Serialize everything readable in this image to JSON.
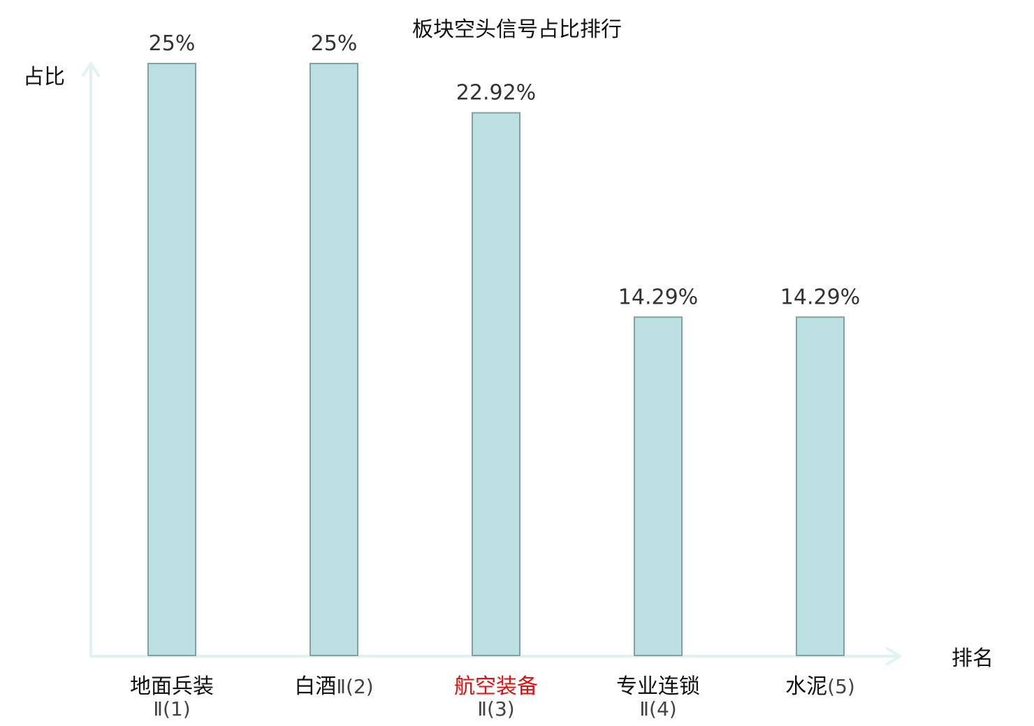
{
  "chart_data": {
    "type": "bar",
    "title": "板块空头信号占比排行",
    "ylabel": "占比",
    "xlabel": "排名",
    "ylim": [
      0,
      25
    ],
    "grid": false,
    "categories": [
      {
        "name": "地面兵装",
        "rank": "Ⅱ(1)",
        "highlight": false
      },
      {
        "name": "白酒",
        "rank": "Ⅱ(2)",
        "highlight": false
      },
      {
        "name": "航空装备",
        "rank": "Ⅱ(3)",
        "highlight": true
      },
      {
        "name": "专业连锁",
        "rank": "Ⅱ(4)",
        "highlight": false
      },
      {
        "name": "水泥",
        "rank": "(5)",
        "highlight": false
      }
    ],
    "values": [
      25,
      25,
      22.92,
      14.29,
      14.29
    ],
    "value_labels": [
      "25%",
      "25%",
      "22.92%",
      "14.29%",
      "14.29%"
    ],
    "colors": {
      "bar_fill": "#bce0e2",
      "bar_stroke": "#7fa3a5",
      "axis": "#e1f3f1",
      "highlight_text": "#e01010",
      "text": "#111111"
    }
  }
}
